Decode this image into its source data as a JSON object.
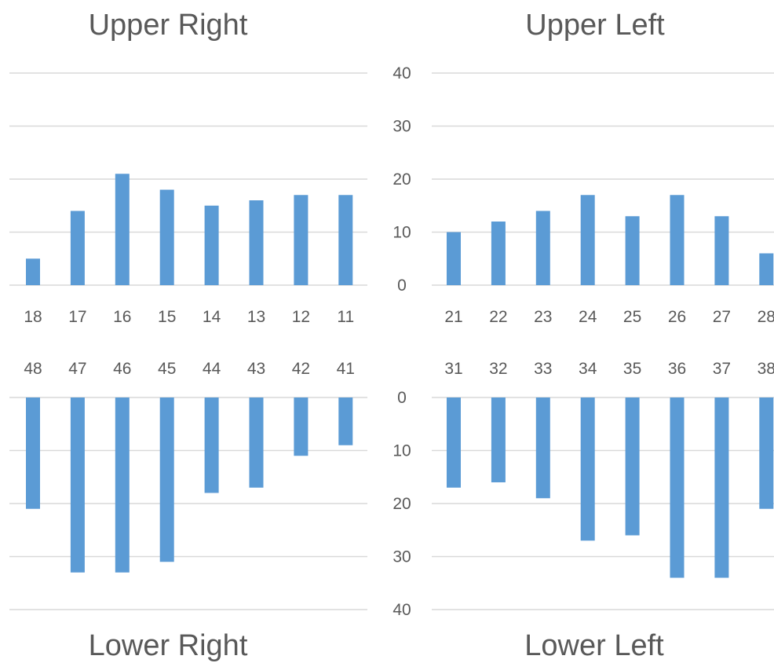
{
  "chart_data": [
    {
      "type": "bar",
      "title": "Upper Right",
      "categories": [
        "18",
        "17",
        "16",
        "15",
        "14",
        "13",
        "12",
        "11"
      ],
      "values": [
        5,
        14,
        21,
        18,
        15,
        16,
        17,
        17
      ],
      "ylim": [
        0,
        40
      ],
      "orientation": "up",
      "grid": true,
      "color": "#5b9bd5"
    },
    {
      "type": "bar",
      "title": "Upper Left",
      "categories": [
        "21",
        "22",
        "23",
        "24",
        "25",
        "26",
        "27",
        "28"
      ],
      "values": [
        10,
        12,
        14,
        17,
        13,
        17,
        13,
        6
      ],
      "ylim": [
        0,
        40
      ],
      "yticks": [
        "0",
        "10",
        "20",
        "30",
        "40"
      ],
      "orientation": "up",
      "grid": true,
      "color": "#5b9bd5"
    },
    {
      "type": "bar",
      "title": "Lower Right",
      "categories": [
        "48",
        "47",
        "46",
        "45",
        "44",
        "43",
        "42",
        "41"
      ],
      "values": [
        21,
        33,
        33,
        31,
        18,
        17,
        11,
        9
      ],
      "ylim": [
        0,
        40
      ],
      "orientation": "down",
      "grid": true,
      "color": "#5b9bd5"
    },
    {
      "type": "bar",
      "title": "Lower Left",
      "categories": [
        "31",
        "32",
        "33",
        "34",
        "35",
        "36",
        "37",
        "38"
      ],
      "values": [
        17,
        16,
        19,
        27,
        26,
        34,
        34,
        21
      ],
      "ylim": [
        0,
        40
      ],
      "yticks": [
        "0",
        "10",
        "20",
        "30",
        "40"
      ],
      "orientation": "down",
      "grid": true,
      "color": "#5b9bd5"
    }
  ]
}
